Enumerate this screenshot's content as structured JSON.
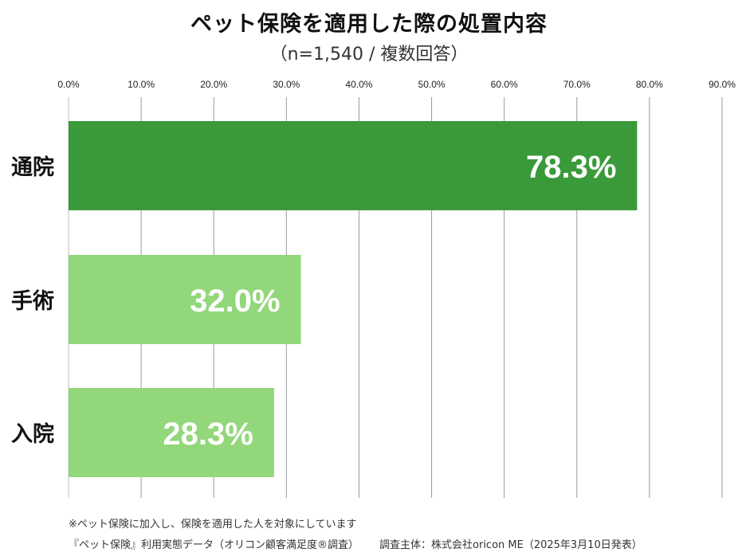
{
  "chart_data": {
    "type": "bar",
    "orientation": "horizontal",
    "title": "ペット保険を適用した際の処置内容",
    "subtitle": "（n=1,540 / 複数回答）",
    "categories": [
      "通院",
      "手術",
      "入院"
    ],
    "values": [
      78.3,
      32.0,
      28.3
    ],
    "value_labels": [
      "78.3%",
      "32.0%",
      "28.3%"
    ],
    "xlim": [
      0,
      90
    ],
    "x_ticks": [
      "0.0%",
      "10.0%",
      "20.0%",
      "30.0%",
      "40.0%",
      "50.0%",
      "60.0%",
      "70.0%",
      "80.0%",
      "90.0%"
    ],
    "grid": true,
    "colors": [
      "#3a9a3a",
      "#92d77a",
      "#92d77a"
    ]
  },
  "footer": {
    "note": "※ペット保険に加入し、保険を適用した人を対象にしています",
    "data_source": "『ペット保険』利用実態データ（オリコン顧客満足度®調査）",
    "survey": "調査主体：株式会社oricon ME（2025年3月10日発表）"
  }
}
